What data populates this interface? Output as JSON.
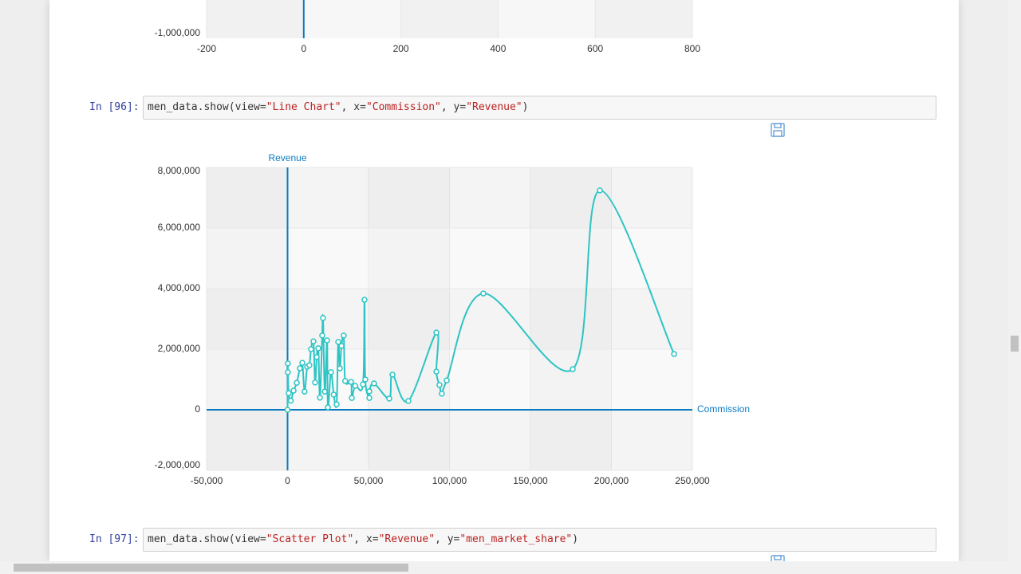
{
  "previous_output": {
    "y_tick_label": "-1,000,000",
    "x_tick_labels": [
      "-200",
      "0",
      "200",
      "400",
      "600",
      "800"
    ]
  },
  "cells": [
    {
      "prompt": "In [96]:",
      "code": [
        "men_data.show(view=",
        "\"Line Chart\"",
        ", x=",
        "\"Commission\"",
        ", y=",
        "\"Revenue\"",
        ")"
      ]
    },
    {
      "prompt": "In [97]:",
      "code": [
        "men_data.show(view=",
        "\"Scatter Plot\"",
        ", x=",
        "\"Revenue\"",
        ", y=",
        "\"men_market_share\"",
        ")"
      ]
    }
  ],
  "chart_data": {
    "type": "line",
    "x_label": "Commission",
    "y_label": "Revenue",
    "color": "#2ec4c4",
    "axis_color": "#0a7bc0",
    "grid": true,
    "xlim": [
      -50000,
      250000
    ],
    "xticks": [
      {
        "value": -50000,
        "label": "-50,000"
      },
      0,
      {
        "value": 50000,
        "label": "50,000"
      },
      {
        "value": 100000,
        "label": "100,000"
      },
      {
        "value": 150000,
        "label": "150,000"
      },
      {
        "value": 200000,
        "label": "200,000"
      },
      {
        "value": 250000,
        "label": "250,000"
      }
    ],
    "ylim": [
      -2000000,
      8000000
    ],
    "yticks": [
      {
        "value": -2000000,
        "label": "-2,000,000"
      },
      0,
      {
        "value": 2000000,
        "label": "2,000,000"
      },
      {
        "value": 4000000,
        "label": "4,000,000"
      },
      {
        "value": 6000000,
        "label": "6,000,000"
      },
      {
        "value": 8000000,
        "label": "8,000,000"
      }
    ],
    "x": [
      0,
      200,
      200,
      700,
      2000,
      3700,
      5700,
      7600,
      9100,
      10500,
      12100,
      13500,
      14500,
      16000,
      17000,
      18000,
      19000,
      20000,
      21400,
      21900,
      23000,
      24400,
      24900,
      26800,
      28500,
      30300,
      31300,
      32300,
      33300,
      34700,
      35600,
      39200,
      39700,
      41800,
      46600,
      47500,
      48000,
      50500,
      50500,
      53400,
      62800,
      64800,
      74600,
      91900,
      91900,
      93800,
      95300,
      98300,
      120900,
      176100,
      192900,
      238700
    ],
    "values": [
      0,
      1530000,
      1240000,
      550000,
      300000,
      630000,
      890000,
      1370000,
      1550000,
      600000,
      1420000,
      1470000,
      2000000,
      2260000,
      900000,
      1740000,
      2030000,
      400000,
      2450000,
      3030000,
      600000,
      2290000,
      80000,
      1240000,
      500000,
      180000,
      2240000,
      1370000,
      2110000,
      2450000,
      950000,
      920000,
      390000,
      790000,
      840000,
      3630000,
      1000000,
      390000,
      610000,
      870000,
      370000,
      1160000,
      290000,
      2550000,
      1260000,
      820000,
      530000,
      970000,
      3840000,
      1340000,
      7240000,
      1840000
    ]
  }
}
